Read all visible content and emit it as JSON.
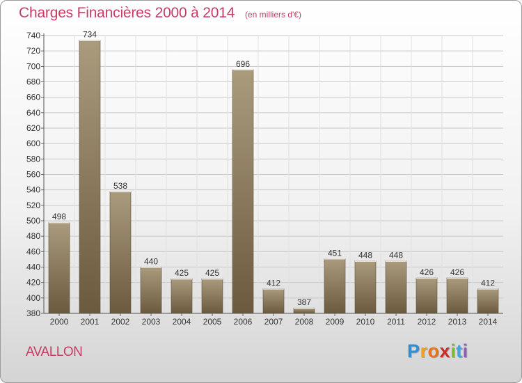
{
  "header": {
    "title": "Charges Financières 2000 à 2014",
    "subtitle": "(en milliers d'€)"
  },
  "footer": {
    "place": "AVALLON",
    "logo": {
      "letters": [
        "P",
        "r",
        "o",
        "x",
        "i",
        "t",
        "i"
      ],
      "colors": [
        "#2f8fd6",
        "#f0a21c",
        "#e8731a",
        "#d12a2a",
        "#7cbf2a",
        "#3fa4e0",
        "#8c5bbf"
      ]
    }
  },
  "chart_data": {
    "type": "bar",
    "title": "Charges Financières 2000 à 2014",
    "subtitle": "(en milliers d'€)",
    "categories": [
      "2000",
      "2001",
      "2002",
      "2003",
      "2004",
      "2005",
      "2006",
      "2007",
      "2008",
      "2009",
      "2010",
      "2011",
      "2012",
      "2013",
      "2014"
    ],
    "values": [
      498,
      734,
      538,
      440,
      425,
      425,
      696,
      412,
      387,
      451,
      448,
      448,
      426,
      426,
      412
    ],
    "ylim": [
      380,
      740
    ],
    "ytick_step": 20,
    "grid": true,
    "colors": {
      "bar_light": "#ab9b7d",
      "bar_dark": "#6b5a3e",
      "grid": "#c8c8c8",
      "axis_text": "#333333"
    }
  }
}
